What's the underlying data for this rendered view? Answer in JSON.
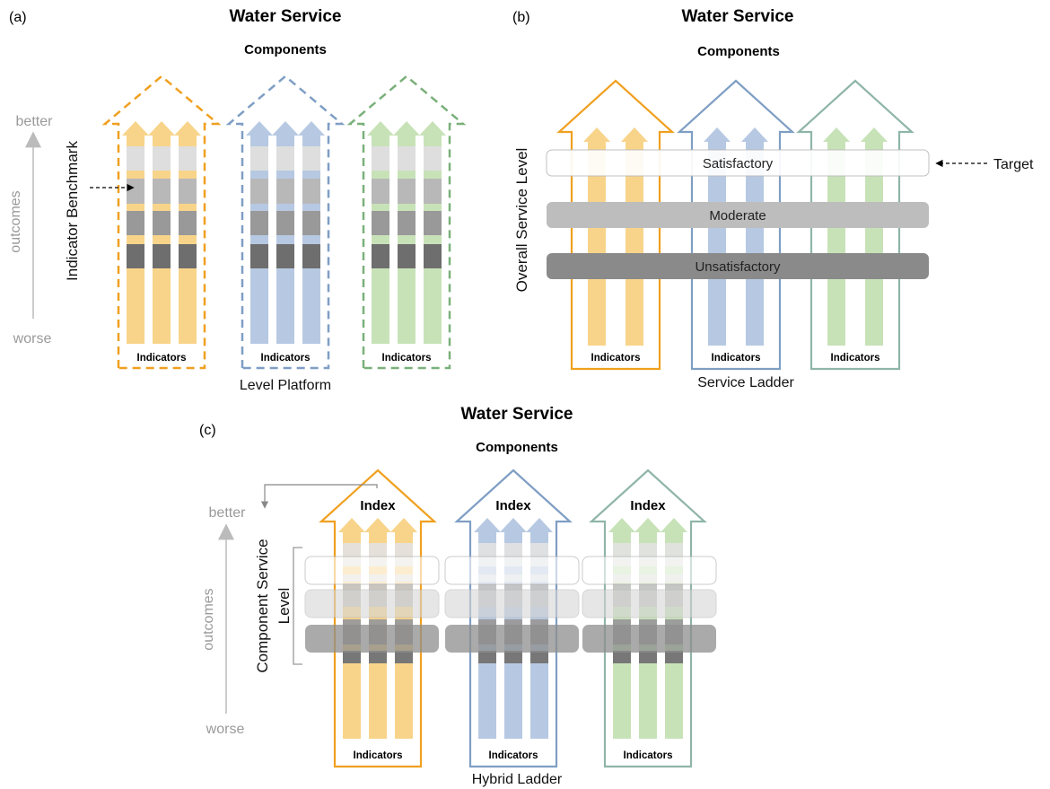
{
  "panels": {
    "a": {
      "label": "(a)",
      "title": "Water Service",
      "subtitle": "Components",
      "caption": "Level Platform",
      "side_label": "Indicator Benchmark",
      "axis_top": "better",
      "axis_middle": "outcomes",
      "axis_bottom": "worse",
      "indicator_label": "Indicators"
    },
    "b": {
      "label": "(b)",
      "title": "Water Service",
      "subtitle": "Components",
      "caption": "Service Ladder",
      "side_label": "Overall Service Level",
      "target_label": "Target",
      "bands": [
        "Satisfactory",
        "Moderate",
        "Unsatisfactory"
      ],
      "indicator_label": "Indicators"
    },
    "c": {
      "label": "(c)",
      "title": "Water Service",
      "subtitle": "Components",
      "caption": "Hybrid Ladder",
      "side_label_line1": "Component Service",
      "side_label_line2": "Level",
      "axis_top": "better",
      "axis_middle": "outcomes",
      "axis_bottom": "worse",
      "index_label": "Index",
      "indicator_label": "Indicators"
    }
  },
  "colors": {
    "orange_outline": "#f0a020",
    "blue_outline": "#7f9ec4",
    "green_outline": "#7ab07a",
    "teal_outline": "#8fb5a8",
    "orange_fill": "#f8d48a",
    "blue_fill": "#b7c9e2",
    "green_fill": "#c8e2b8"
  }
}
